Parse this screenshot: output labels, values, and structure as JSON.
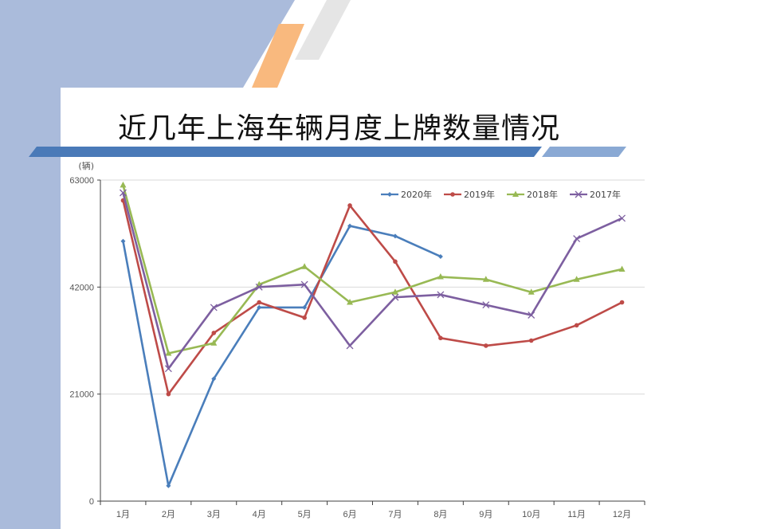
{
  "slide": {
    "title": "近几年上海车辆月度上牌数量情况"
  },
  "chart_data": {
    "type": "line",
    "title": "近几年上海车辆月度上牌数量情况",
    "ylabel": "(辆)",
    "xlabel": "",
    "ylim": [
      0,
      63000
    ],
    "yticks": [
      0,
      21000,
      42000,
      63000
    ],
    "categories": [
      "1月",
      "2月",
      "3月",
      "4月",
      "5月",
      "6月",
      "7月",
      "8月",
      "9月",
      "10月",
      "11月",
      "12月"
    ],
    "grid": true,
    "legend_position": "top-right",
    "series": [
      {
        "name": "2020年",
        "color": "#4a7ebb",
        "marker": "diamond",
        "values": [
          51000,
          3000,
          24000,
          38000,
          38000,
          54000,
          52000,
          48000,
          null,
          null,
          null,
          null
        ]
      },
      {
        "name": "2019年",
        "color": "#be4b48",
        "marker": "circle",
        "values": [
          59000,
          21000,
          33000,
          39000,
          36000,
          58000,
          47000,
          32000,
          30500,
          31500,
          34500,
          39000
        ]
      },
      {
        "name": "2018年",
        "color": "#98b954",
        "marker": "triangle",
        "values": [
          62000,
          29000,
          31000,
          42500,
          46000,
          39000,
          41000,
          44000,
          43500,
          41000,
          43500,
          45500
        ]
      },
      {
        "name": "2017年",
        "color": "#7d5fa0",
        "marker": "x",
        "values": [
          60500,
          26000,
          38000,
          42000,
          42500,
          30500,
          40000,
          40500,
          38500,
          36500,
          51500,
          55500
        ]
      }
    ]
  }
}
